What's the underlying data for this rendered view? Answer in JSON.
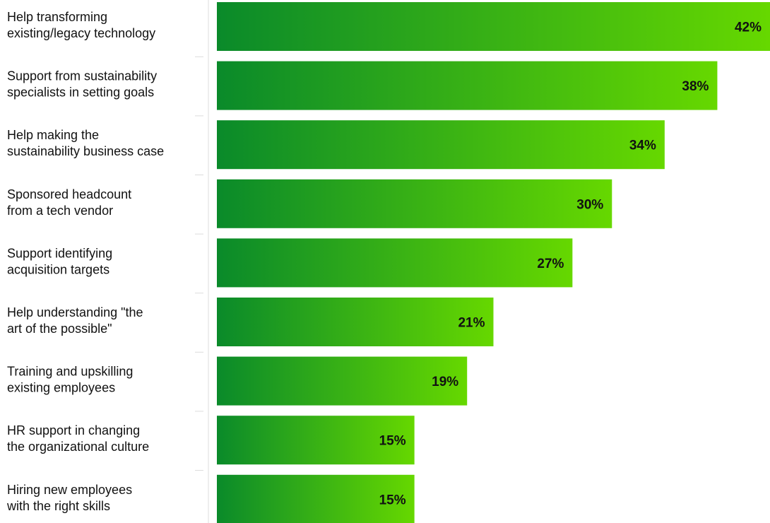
{
  "chart_data": {
    "type": "bar",
    "orientation": "horizontal",
    "categories": [
      [
        "Help transforming",
        "existing/legacy technology"
      ],
      [
        "Support from sustainability",
        "specialists in setting goals"
      ],
      [
        "Help making the",
        "sustainability business case"
      ],
      [
        "Sponsored headcount",
        "from a tech vendor"
      ],
      [
        "Support identifying",
        "acquisition targets"
      ],
      [
        "Help understanding \"the",
        "art of the possible\""
      ],
      [
        "Training and upskilling",
        "existing employees"
      ],
      [
        "HR support in changing",
        "the organizational culture"
      ],
      [
        "Hiring new employees",
        "with the right skills"
      ]
    ],
    "values": [
      42,
      38,
      34,
      30,
      27,
      21,
      19,
      15,
      15
    ],
    "value_labels": [
      "42%",
      "38%",
      "34%",
      "30%",
      "27%",
      "21%",
      "19%",
      "15%",
      "15%"
    ],
    "unit": "%",
    "xlim": [
      0,
      42
    ],
    "title": "",
    "xlabel": "",
    "ylabel": "",
    "grid": false,
    "legend": "none",
    "colors": {
      "bar_start": "#0a8a2a",
      "bar_end": "#66d800",
      "label_text": "#111111",
      "axis": "#dcdcdc"
    }
  }
}
